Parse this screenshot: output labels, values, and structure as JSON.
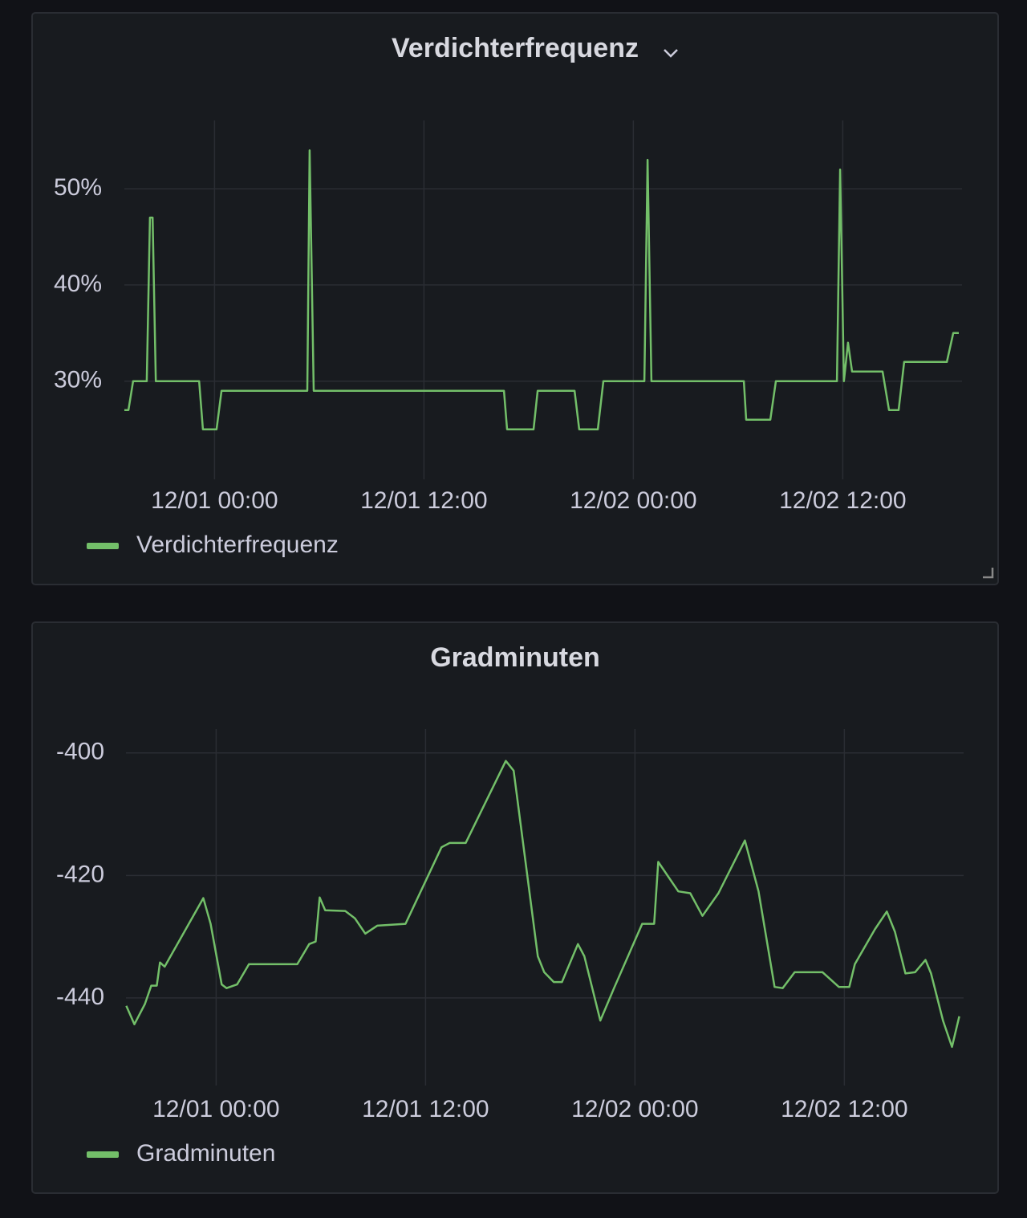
{
  "chart_data": [
    {
      "type": "line",
      "title": "Verdichterfrequenz",
      "x": [
        "11/30 18:50",
        "11/30 19:04",
        "11/30 19:20",
        "11/30 20:07",
        "11/30 20:18",
        "11/30 20:27",
        "11/30 20:38",
        "11/30 23:07",
        "11/30 23:20",
        "12/01 00:07",
        "12/01 00:24",
        "12/01 05:19",
        "12/01 05:27",
        "12/01 05:41",
        "12/01 16:35",
        "12/01 16:46",
        "12/01 18:17",
        "12/01 18:31",
        "12/01 20:38",
        "12/01 20:54",
        "12/01 21:58",
        "12/01 22:17",
        "12/02 00:38",
        "12/02 00:49",
        "12/02 01:02",
        "12/02 06:20",
        "12/02 06:28",
        "12/02 07:51",
        "12/02 08:10",
        "12/02 11:40",
        "12/02 11:51",
        "12/02 12:04",
        "12/02 12:18",
        "12/02 12:32",
        "12/02 14:17",
        "12/02 14:39",
        "12/02 15:12",
        "12/02 15:31",
        "12/02 17:58",
        "12/02 18:20",
        "12/02 18:39"
      ],
      "series": [
        {
          "name": "Verdichterfrequenz",
          "color": "#73bf69",
          "values": [
            27,
            27,
            30,
            30,
            47,
            47,
            30,
            30,
            25,
            25,
            29,
            29,
            54,
            29,
            29,
            25,
            25,
            29,
            29,
            25,
            25,
            30,
            30,
            53,
            30,
            30,
            26,
            26,
            30,
            30,
            52,
            30,
            34,
            31,
            31,
            27,
            27,
            32,
            32,
            35,
            35
          ]
        }
      ],
      "xlim": [
        "11/30 18:50",
        "12/02 18:50"
      ],
      "xticks": [
        "12/01 00:00",
        "12/01 12:00",
        "12/02 00:00",
        "12/02 12:00"
      ],
      "ylim": [
        19.8,
        57.1
      ],
      "yticks": [
        {
          "value": 30,
          "label": "30%"
        },
        {
          "value": 40,
          "label": "40%"
        },
        {
          "value": 50,
          "label": "50%"
        }
      ],
      "grid": true
    },
    {
      "type": "line",
      "title": "Gradminuten",
      "x": [
        "11/30 18:51",
        "11/30 19:19",
        "11/30 19:55",
        "11/30 20:17",
        "11/30 20:36",
        "11/30 20:47",
        "11/30 21:03",
        "11/30 23:16",
        "11/30 23:41",
        "12/01 00:19",
        "12/01 00:36",
        "12/01 01:12",
        "12/01 01:53",
        "12/01 04:39",
        "12/01 05:20",
        "12/01 05:42",
        "12/01 05:56",
        "12/01 06:15",
        "12/01 07:24",
        "12/01 07:57",
        "12/01 08:33",
        "12/01 09:14",
        "12/01 10:51",
        "12/01 12:55",
        "12/01 13:23",
        "12/01 14:18",
        "12/01 16:36",
        "12/01 17:03",
        "12/01 18:26",
        "12/01 18:48",
        "12/01 19:21",
        "12/01 19:49",
        "12/01 20:44",
        "12/01 21:06",
        "12/01 22:01",
        "12/01 22:48",
        "12/02 00:25",
        "12/02 01:06",
        "12/02 01:20",
        "12/02 02:29",
        "12/02 03:10",
        "12/02 03:52",
        "12/02 04:47",
        "12/02 06:18",
        "12/02 07:05",
        "12/02 08:00",
        "12/02 08:28",
        "12/02 09:09",
        "12/02 10:45",
        "12/02 11:41",
        "12/02 12:17",
        "12/02 12:36",
        "12/02 13:45",
        "12/02 14:26",
        "12/02 14:54",
        "12/02 15:30",
        "12/02 16:03",
        "12/02 16:39",
        "12/02 16:58",
        "12/02 17:39",
        "12/02 18:10",
        "12/02 18:35"
      ],
      "series": [
        {
          "name": "Gradminuten",
          "color": "#73bf69",
          "values": [
            -441.3,
            -444.3,
            -441,
            -438,
            -438,
            -434.2,
            -434.9,
            -423.7,
            -427.9,
            -437.8,
            -438.4,
            -437.8,
            -434.5,
            -434.5,
            -431.2,
            -430.8,
            -423.6,
            -425.7,
            -425.8,
            -427,
            -429.5,
            -428.2,
            -427.9,
            -415.4,
            -414.7,
            -414.7,
            -401.3,
            -402.9,
            -433.2,
            -435.8,
            -437.4,
            -437.4,
            -431.2,
            -433.2,
            -443.7,
            -438.4,
            -427.9,
            -427.9,
            -417.8,
            -422.6,
            -422.9,
            -426.6,
            -422.9,
            -414.3,
            -422.6,
            -438.2,
            -438.4,
            -435.8,
            -435.8,
            -438.2,
            -438.2,
            -434.5,
            -428.8,
            -425.9,
            -429.2,
            -436,
            -435.8,
            -433.8,
            -436,
            -443.7,
            -448,
            -443
          ]
        }
      ],
      "xlim": [
        "11/30 18:50",
        "12/02 18:50"
      ],
      "xticks": [
        "12/01 00:00",
        "12/01 12:00",
        "12/02 00:00",
        "12/02 12:00"
      ],
      "ylim": [
        -454.3,
        -396.1
      ],
      "yticks": [
        -440,
        -420,
        -400
      ],
      "grid": true
    }
  ]
}
